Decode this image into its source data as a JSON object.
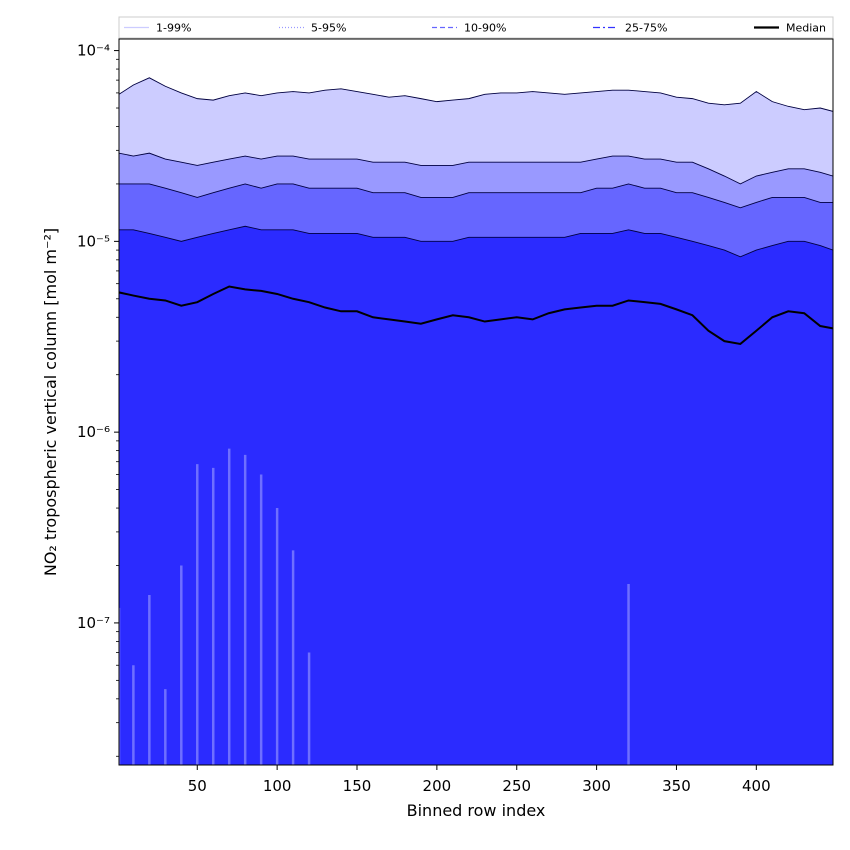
{
  "chart_data": {
    "type": "area",
    "title": "",
    "xlabel": "Binned row index",
    "ylabel": "NO₂ tropospheric vertical column [mol m⁻²]",
    "yscale": "log",
    "xlim": [
      1,
      448
    ],
    "ylim": [
      1.8e-08,
      0.000115
    ],
    "grid": false,
    "legend_position": "top, above plot, single row",
    "x_ticks": [
      50,
      100,
      150,
      200,
      250,
      300,
      350,
      400
    ],
    "x_tick_labels": [
      "50",
      "100",
      "150",
      "200",
      "250",
      "300",
      "350",
      "400"
    ],
    "y_ticks": [
      1e-07,
      1e-06,
      1e-05,
      0.0001
    ],
    "y_tick_labels": [
      "10⁻⁷",
      "10⁻⁶",
      "10⁻⁵",
      "10⁻⁴"
    ],
    "x": [
      1,
      10,
      20,
      30,
      40,
      50,
      60,
      70,
      80,
      90,
      100,
      110,
      120,
      130,
      140,
      150,
      160,
      170,
      180,
      190,
      200,
      210,
      220,
      230,
      240,
      250,
      260,
      270,
      280,
      290,
      300,
      310,
      320,
      330,
      340,
      350,
      360,
      370,
      380,
      390,
      400,
      410,
      420,
      430,
      440,
      448
    ],
    "series": [
      {
        "name": "1-99%",
        "color": "#ccccff",
        "line_style": "solid",
        "upper": [
          5.9e-05,
          6.6e-05,
          7.2e-05,
          6.5e-05,
          6e-05,
          5.6e-05,
          5.5e-05,
          5.8e-05,
          6e-05,
          5.8e-05,
          6e-05,
          6.1e-05,
          6e-05,
          6.2e-05,
          6.3e-05,
          6.1e-05,
          5.9e-05,
          5.7e-05,
          5.8e-05,
          5.6e-05,
          5.4e-05,
          5.5e-05,
          5.6e-05,
          5.9e-05,
          6e-05,
          6e-05,
          6.1e-05,
          6e-05,
          5.9e-05,
          6e-05,
          6.1e-05,
          6.2e-05,
          6.2e-05,
          6.1e-05,
          6e-05,
          5.7e-05,
          5.6e-05,
          5.3e-05,
          5.2e-05,
          5.3e-05,
          6.1e-05,
          5.4e-05,
          5.1e-05,
          4.9e-05,
          5e-05,
          4.8e-05
        ],
        "lower": [
          1.2e-07,
          6e-08,
          1.4e-07,
          4.5e-08,
          2e-07,
          6.8e-07,
          6.5e-07,
          8.2e-07,
          7.6e-07,
          6e-07,
          4e-07,
          2.4e-07,
          7e-08,
          1.8e-08,
          1.8e-08,
          1.8e-08,
          1.8e-08,
          1.8e-08,
          1.8e-08,
          1.8e-08,
          1.8e-08,
          1.8e-08,
          1.8e-08,
          1.8e-08,
          1.8e-08,
          1.8e-08,
          1.8e-08,
          1.8e-08,
          1.8e-08,
          1.8e-08,
          1.8e-08,
          1.8e-08,
          1.6e-07,
          1.8e-08,
          1.8e-08,
          1.8e-08,
          1.8e-08,
          1.8e-08,
          1.8e-08,
          1.8e-08,
          1.8e-08,
          1.8e-08,
          1.8e-08,
          1.8e-08,
          1.8e-08,
          1.8e-08
        ]
      },
      {
        "name": "5-95%",
        "color": "#9999ff",
        "line_style": "dotted",
        "upper": [
          2.9e-05,
          2.8e-05,
          2.9e-05,
          2.7e-05,
          2.6e-05,
          2.5e-05,
          2.6e-05,
          2.7e-05,
          2.8e-05,
          2.7e-05,
          2.8e-05,
          2.8e-05,
          2.7e-05,
          2.7e-05,
          2.7e-05,
          2.7e-05,
          2.6e-05,
          2.6e-05,
          2.6e-05,
          2.5e-05,
          2.5e-05,
          2.5e-05,
          2.6e-05,
          2.6e-05,
          2.6e-05,
          2.6e-05,
          2.6e-05,
          2.6e-05,
          2.6e-05,
          2.6e-05,
          2.7e-05,
          2.8e-05,
          2.8e-05,
          2.7e-05,
          2.7e-05,
          2.6e-05,
          2.6e-05,
          2.4e-05,
          2.2e-05,
          2e-05,
          2.2e-05,
          2.3e-05,
          2.4e-05,
          2.4e-05,
          2.3e-05,
          2.2e-05
        ]
      },
      {
        "name": "10-90%",
        "color": "#6666ff",
        "line_style": "dashed",
        "upper": [
          2e-05,
          2e-05,
          2e-05,
          1.9e-05,
          1.8e-05,
          1.7e-05,
          1.8e-05,
          1.9e-05,
          2e-05,
          1.9e-05,
          2e-05,
          2e-05,
          1.9e-05,
          1.9e-05,
          1.9e-05,
          1.9e-05,
          1.8e-05,
          1.8e-05,
          1.8e-05,
          1.7e-05,
          1.7e-05,
          1.7e-05,
          1.8e-05,
          1.8e-05,
          1.8e-05,
          1.8e-05,
          1.8e-05,
          1.8e-05,
          1.8e-05,
          1.8e-05,
          1.9e-05,
          1.9e-05,
          2e-05,
          1.9e-05,
          1.9e-05,
          1.8e-05,
          1.8e-05,
          1.7e-05,
          1.6e-05,
          1.5e-05,
          1.6e-05,
          1.7e-05,
          1.7e-05,
          1.7e-05,
          1.6e-05,
          1.6e-05
        ]
      },
      {
        "name": "25-75%",
        "color": "#3333ff",
        "line_style": "dashdot",
        "upper": [
          1.15e-05,
          1.15e-05,
          1.1e-05,
          1.05e-05,
          1e-05,
          1.05e-05,
          1.1e-05,
          1.15e-05,
          1.2e-05,
          1.15e-05,
          1.15e-05,
          1.15e-05,
          1.1e-05,
          1.1e-05,
          1.1e-05,
          1.1e-05,
          1.05e-05,
          1.05e-05,
          1.05e-05,
          1e-05,
          1e-05,
          1e-05,
          1.05e-05,
          1.05e-05,
          1.05e-05,
          1.05e-05,
          1.05e-05,
          1.05e-05,
          1.05e-05,
          1.1e-05,
          1.1e-05,
          1.1e-05,
          1.15e-05,
          1.1e-05,
          1.1e-05,
          1.05e-05,
          1e-05,
          9.5e-06,
          9e-06,
          8.3e-06,
          9e-06,
          9.5e-06,
          1e-05,
          1e-05,
          9.5e-06,
          9e-06
        ]
      },
      {
        "name": "Median",
        "color": "#000000",
        "line_style": "solid",
        "values": [
          5.4e-06,
          5.2e-06,
          5e-06,
          4.9e-06,
          4.6e-06,
          4.8e-06,
          5.3e-06,
          5.8e-06,
          5.6e-06,
          5.5e-06,
          5.3e-06,
          5e-06,
          4.8e-06,
          4.5e-06,
          4.3e-06,
          4.3e-06,
          4e-06,
          3.9e-06,
          3.8e-06,
          3.7e-06,
          3.9e-06,
          4.1e-06,
          4e-06,
          3.8e-06,
          3.9e-06,
          4e-06,
          3.9e-06,
          4.2e-06,
          4.4e-06,
          4.5e-06,
          4.6e-06,
          4.6e-06,
          4.9e-06,
          4.8e-06,
          4.7e-06,
          4.4e-06,
          4.1e-06,
          3.4e-06,
          3e-06,
          2.9e-06,
          3.4e-06,
          4e-06,
          4.3e-06,
          4.2e-06,
          3.6e-06,
          3.5e-06
        ]
      }
    ]
  }
}
